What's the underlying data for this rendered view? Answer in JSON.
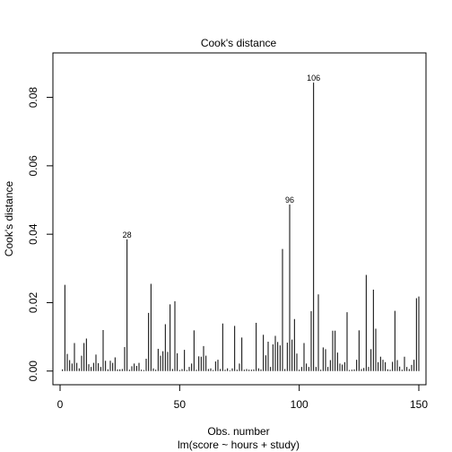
{
  "chart_data": {
    "type": "bar",
    "title": "Cook's distance",
    "xlabel": "Obs. number",
    "xlabel2": "lm(score ~ hours + study)",
    "ylabel": "Cook's distance",
    "xlim": [
      -3,
      153
    ],
    "ylim": [
      -0.004,
      0.093
    ],
    "xticks": [
      0,
      50,
      100,
      150
    ],
    "yticks": [
      0.0,
      0.02,
      0.04,
      0.06,
      0.08
    ],
    "ytick_labels": [
      "0.00",
      "0.02",
      "0.04",
      "0.06",
      "0.08"
    ],
    "labeled_points": [
      {
        "x": 28,
        "y": 0.0385,
        "label": "28"
      },
      {
        "x": 96,
        "y": 0.0487,
        "label": "96"
      },
      {
        "x": 106,
        "y": 0.0843,
        "label": "106"
      }
    ],
    "x": [
      1,
      2,
      3,
      4,
      5,
      6,
      7,
      8,
      9,
      10,
      11,
      12,
      13,
      14,
      15,
      16,
      17,
      18,
      19,
      20,
      21,
      22,
      23,
      24,
      25,
      26,
      27,
      28,
      29,
      30,
      31,
      32,
      33,
      34,
      35,
      36,
      37,
      38,
      39,
      40,
      41,
      42,
      43,
      44,
      45,
      46,
      47,
      48,
      49,
      50,
      51,
      52,
      53,
      54,
      55,
      56,
      57,
      58,
      59,
      60,
      61,
      62,
      63,
      64,
      65,
      66,
      67,
      68,
      69,
      70,
      71,
      72,
      73,
      74,
      75,
      76,
      77,
      78,
      79,
      80,
      81,
      82,
      83,
      84,
      85,
      86,
      87,
      88,
      89,
      90,
      91,
      92,
      93,
      94,
      95,
      96,
      97,
      98,
      99,
      100,
      101,
      102,
      103,
      104,
      105,
      106,
      107,
      108,
      109,
      110,
      111,
      112,
      113,
      114,
      115,
      116,
      117,
      118,
      119,
      120,
      121,
      122,
      123,
      124,
      125,
      126,
      127,
      128,
      129,
      130,
      131,
      132,
      133,
      134,
      135,
      136,
      137,
      138,
      139,
      140,
      141,
      142,
      143,
      144,
      145,
      146,
      147,
      148,
      149,
      150
    ],
    "values": [
      0.0005,
      0.0252,
      0.005,
      0.0032,
      0.0022,
      0.0082,
      0.0024,
      0.0008,
      0.0045,
      0.0082,
      0.0095,
      0.002,
      0.0012,
      0.0024,
      0.0048,
      0.0023,
      0.0012,
      0.012,
      0.003,
      0.0005,
      0.003,
      0.0024,
      0.004,
      0.0005,
      0.0005,
      0.0006,
      0.007,
      0.0385,
      0.0004,
      0.0014,
      0.0022,
      0.0015,
      0.0024,
      0.0004,
      0.0003,
      0.0036,
      0.017,
      0.0255,
      0.0008,
      0.0004,
      0.0065,
      0.0045,
      0.0058,
      0.0137,
      0.0056,
      0.0195,
      0.0006,
      0.0204,
      0.0052,
      0.0003,
      0.0006,
      0.0062,
      0.0003,
      0.0012,
      0.0022,
      0.0119,
      0.0004,
      0.0043,
      0.0042,
      0.0073,
      0.0045,
      0.0006,
      0.0008,
      0.0003,
      0.0028,
      0.0033,
      0.0006,
      0.0139,
      0.0004,
      0.0008,
      0.0002,
      0.0008,
      0.0132,
      0.0004,
      0.0022,
      0.0098,
      0.0004,
      0.0006,
      0.0004,
      0.0004,
      0.0005,
      0.0141,
      0.0008,
      0.0005,
      0.0106,
      0.0046,
      0.0086,
      0.0012,
      0.0078,
      0.0103,
      0.0085,
      0.0075,
      0.0357,
      0.0006,
      0.0083,
      0.0487,
      0.0092,
      0.0152,
      0.0051,
      0.0004,
      0.0012,
      0.0082,
      0.0022,
      0.0012,
      0.0175,
      0.0843,
      0.0012,
      0.0224,
      0.0004,
      0.0069,
      0.0064,
      0.0012,
      0.0032,
      0.0118,
      0.0118,
      0.0054,
      0.0022,
      0.0019,
      0.0026,
      0.0172,
      0.0003,
      0.0004,
      0.0005,
      0.0033,
      0.0119,
      0.0006,
      0.0009,
      0.0281,
      0.0012,
      0.0064,
      0.0238,
      0.0124,
      0.0026,
      0.0042,
      0.0033,
      0.0026,
      0.0005,
      0.0004,
      0.0027,
      0.0176,
      0.0032,
      0.0013,
      0.0004,
      0.0042,
      0.0012,
      0.0006,
      0.0018,
      0.0033,
      0.0213,
      0.0218
    ]
  }
}
